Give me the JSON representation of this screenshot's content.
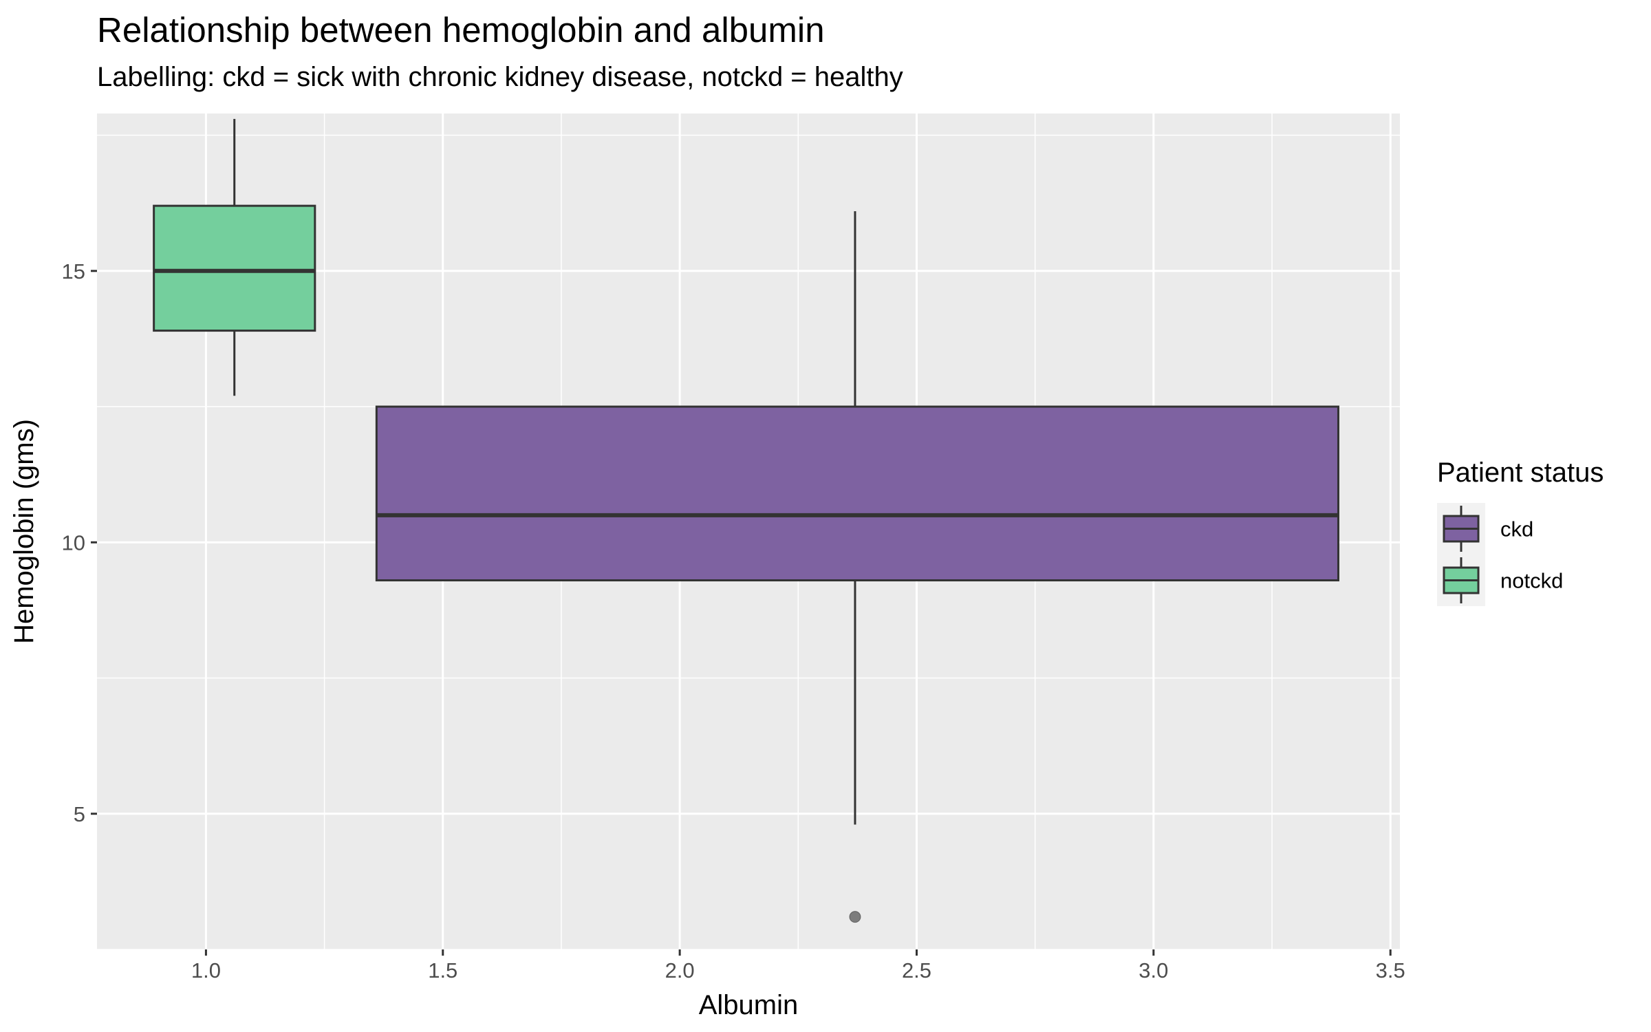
{
  "chart_data": {
    "type": "boxplot",
    "title": "Relationship between hemoglobin and albumin",
    "subtitle": "Labelling: ckd = sick with chronic kidney disease, notckd = healthy",
    "xlabel": "Albumin",
    "ylabel": "Hemoglobin (gms)",
    "xlim": [
      0.77,
      3.52
    ],
    "ylim": [
      2.5,
      17.9
    ],
    "xticks": [
      {
        "value": 1.0,
        "label": "1.0"
      },
      {
        "value": 1.5,
        "label": "1.5"
      },
      {
        "value": 2.0,
        "label": "2.0"
      },
      {
        "value": 2.5,
        "label": "2.5"
      },
      {
        "value": 3.0,
        "label": "3.0"
      },
      {
        "value": 3.5,
        "label": "3.5"
      }
    ],
    "yticks": [
      {
        "value": 5,
        "label": "5"
      },
      {
        "value": 10,
        "label": "10"
      },
      {
        "value": 15,
        "label": "15"
      }
    ],
    "grid": true,
    "legend": {
      "title": "Patient status",
      "position": "right",
      "entries": [
        {
          "name": "ckd",
          "color": "#7E62A1"
        },
        {
          "name": "notckd",
          "color": "#74CF9D"
        }
      ]
    },
    "series": [
      {
        "name": "notckd",
        "color": "#74CF9D",
        "x": 1.06,
        "x_left": 0.89,
        "x_right": 1.23,
        "whisker_low": 12.7,
        "q1": 13.9,
        "median": 15.0,
        "q3": 16.2,
        "whisker_high": 17.8,
        "outliers": []
      },
      {
        "name": "ckd",
        "color": "#7E62A1",
        "x": 2.37,
        "x_left": 1.36,
        "x_right": 3.39,
        "whisker_low": 4.8,
        "q1": 9.3,
        "median": 10.5,
        "q3": 12.5,
        "whisker_high": 16.1,
        "outliers": [
          3.1
        ]
      }
    ]
  }
}
